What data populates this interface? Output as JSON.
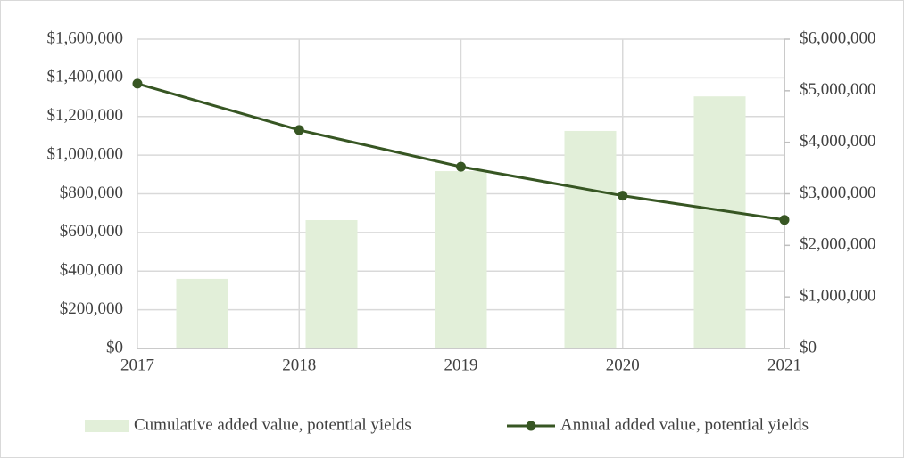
{
  "chart_data": {
    "type": "bar-line",
    "x": [
      2017,
      2018,
      2019,
      2020,
      2021
    ],
    "xlim": [
      2017,
      2021
    ],
    "xticks": [
      2017,
      2018,
      2019,
      2020,
      2021
    ],
    "ylim": [
      0,
      1600000
    ],
    "yticks": [
      {
        "value": 0,
        "label": "$0"
      },
      {
        "value": 200000,
        "label": "$200,000"
      },
      {
        "value": 400000,
        "label": "$400,000"
      },
      {
        "value": 600000,
        "label": "$600,000"
      },
      {
        "value": 800000,
        "label": "$800,000"
      },
      {
        "value": 1000000,
        "label": "$1,000,000"
      },
      {
        "value": 1200000,
        "label": "$1,200,000"
      },
      {
        "value": 1400000,
        "label": "$1,400,000"
      },
      {
        "value": 1600000,
        "label": "$1,600,000"
      }
    ],
    "y2lim": [
      0,
      6000000
    ],
    "y2ticks": [
      {
        "value": 0,
        "label": "$0"
      },
      {
        "value": 1000000,
        "label": "$1,000,000"
      },
      {
        "value": 2000000,
        "label": "$2,000,000"
      },
      {
        "value": 3000000,
        "label": "$3,000,000"
      },
      {
        "value": 4000000,
        "label": "$4,000,000"
      },
      {
        "value": 5000000,
        "label": "$5,000,000"
      },
      {
        "value": 6000000,
        "label": "$6,000,000"
      }
    ],
    "grid": true,
    "legend": "bottom",
    "series": [
      {
        "name": "Cumulative added value, potential yields",
        "type": "bar",
        "axis": "y2",
        "color": "#e2efd9",
        "values": [
          1350000,
          2490000,
          3440000,
          4220000,
          4890000
        ]
      },
      {
        "name": "Annual added value, potential yields",
        "type": "line",
        "axis": "y",
        "color": "#375623",
        "values": [
          1370000,
          1130000,
          940000,
          790000,
          665000
        ]
      }
    ]
  }
}
